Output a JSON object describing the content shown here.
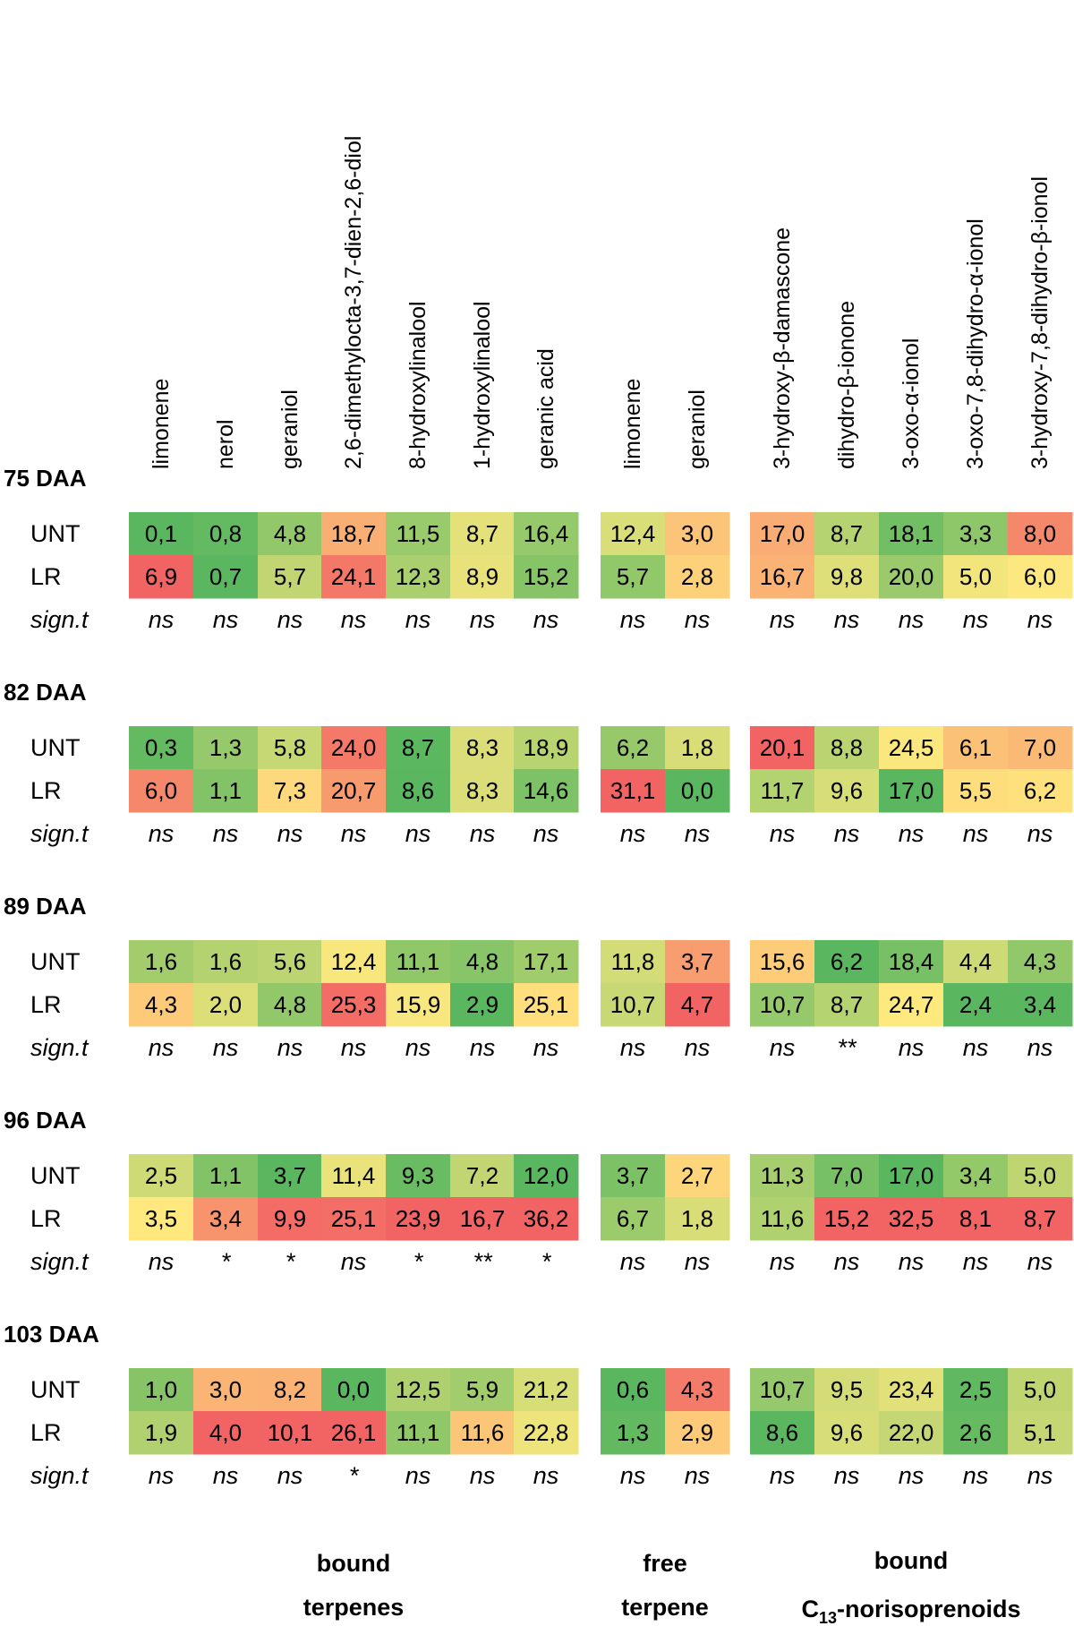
{
  "chart_data": {
    "type": "heatmap",
    "color_scale": {
      "low": "#5ab75f",
      "mid": "#ffe97f",
      "high": "#f26464"
    },
    "columns": [
      "limonene",
      "nerol",
      "geraniol",
      "2,6-dimethylocta-3,7-dien-2,6-diol",
      "8-hydroxylinalool",
      "1-hydroxylinalool",
      "geranic acid",
      "limonene",
      "geraniol",
      "3-hydroxy-β-damascone",
      "dihydro-β-ionone",
      "3-oxo-α-ionol",
      "3-oxo-7,8-dihydro-α-ionol",
      "3-hydroxy-7,8-dihydro-β-ionol"
    ],
    "column_groups": [
      {
        "label_line1": "bound",
        "label_line2": "terpenes",
        "count": 7
      },
      {
        "label_line1": "free",
        "label_line2": "terpene",
        "count": 2
      },
      {
        "label_line1": "bound",
        "label_line2_prefix": "C",
        "label_line2_sub": "13",
        "label_line2_suffix": "-norisoprenoids",
        "count": 5
      }
    ],
    "row_labels": [
      "UNT",
      "LR"
    ],
    "sig_label": "sign.t",
    "blocks": [
      {
        "label": "75 DAA",
        "rows": [
          [
            "0,1",
            "0,8",
            "4,8",
            "18,7",
            "11,5",
            "8,7",
            "16,4",
            "12,4",
            "3,0",
            "17,0",
            "8,7",
            "18,1",
            "3,3",
            "8,0"
          ],
          [
            "6,9",
            "0,7",
            "5,7",
            "24,1",
            "12,3",
            "8,9",
            "15,2",
            "5,7",
            "2,8",
            "16,7",
            "9,8",
            "20,0",
            "5,0",
            "6,0"
          ]
        ],
        "sig": [
          "ns",
          "ns",
          "ns",
          "ns",
          "ns",
          "ns",
          "ns",
          "ns",
          "ns",
          "ns",
          "ns",
          "ns",
          "ns",
          "ns"
        ]
      },
      {
        "label": "82 DAA",
        "rows": [
          [
            "0,3",
            "1,3",
            "5,8",
            "24,0",
            "8,7",
            "8,3",
            "18,9",
            "6,2",
            "1,8",
            "20,1",
            "8,8",
            "24,5",
            "6,1",
            "7,0"
          ],
          [
            "6,0",
            "1,1",
            "7,3",
            "20,7",
            "8,6",
            "8,3",
            "14,6",
            "31,1",
            "0,0",
            "11,7",
            "9,6",
            "17,0",
            "5,5",
            "6,2"
          ]
        ],
        "sig": [
          "ns",
          "ns",
          "ns",
          "ns",
          "ns",
          "ns",
          "ns",
          "ns",
          "ns",
          "ns",
          "ns",
          "ns",
          "ns",
          "ns"
        ]
      },
      {
        "label": "89 DAA",
        "rows": [
          [
            "1,6",
            "1,6",
            "5,6",
            "12,4",
            "11,1",
            "4,8",
            "17,1",
            "11,8",
            "3,7",
            "15,6",
            "6,2",
            "18,4",
            "4,4",
            "4,3"
          ],
          [
            "4,3",
            "2,0",
            "4,8",
            "25,3",
            "15,9",
            "2,9",
            "25,1",
            "10,7",
            "4,7",
            "10,7",
            "8,7",
            "24,7",
            "2,4",
            "3,4"
          ]
        ],
        "sig": [
          "ns",
          "ns",
          "ns",
          "ns",
          "ns",
          "ns",
          "ns",
          "ns",
          "ns",
          "ns",
          "**",
          "ns",
          "ns",
          "ns"
        ]
      },
      {
        "label": "96 DAA",
        "rows": [
          [
            "2,5",
            "1,1",
            "3,7",
            "11,4",
            "9,3",
            "7,2",
            "12,0",
            "3,7",
            "2,7",
            "11,3",
            "7,0",
            "17,0",
            "3,4",
            "5,0"
          ],
          [
            "3,5",
            "3,4",
            "9,9",
            "25,1",
            "23,9",
            "16,7",
            "36,2",
            "6,7",
            "1,8",
            "11,6",
            "15,2",
            "32,5",
            "8,1",
            "8,7"
          ]
        ],
        "sig": [
          "ns",
          "*",
          "*",
          "ns",
          "*",
          "**",
          "*",
          "ns",
          "ns",
          "ns",
          "ns",
          "ns",
          "ns",
          "ns"
        ]
      },
      {
        "label": "103 DAA",
        "rows": [
          [
            "1,0",
            "3,0",
            "8,2",
            "0,0",
            "12,5",
            "5,9",
            "21,2",
            "0,6",
            "4,3",
            "10,7",
            "9,5",
            "23,4",
            "2,5",
            "5,0"
          ],
          [
            "1,9",
            "4,0",
            "10,1",
            "26,1",
            "11,1",
            "11,6",
            "22,8",
            "1,3",
            "2,9",
            "8,6",
            "9,6",
            "22,0",
            "2,6",
            "5,1"
          ]
        ],
        "sig": [
          "ns",
          "ns",
          "ns",
          "*",
          "ns",
          "ns",
          "ns",
          "ns",
          "ns",
          "ns",
          "ns",
          "ns",
          "ns",
          "ns"
        ]
      }
    ]
  }
}
